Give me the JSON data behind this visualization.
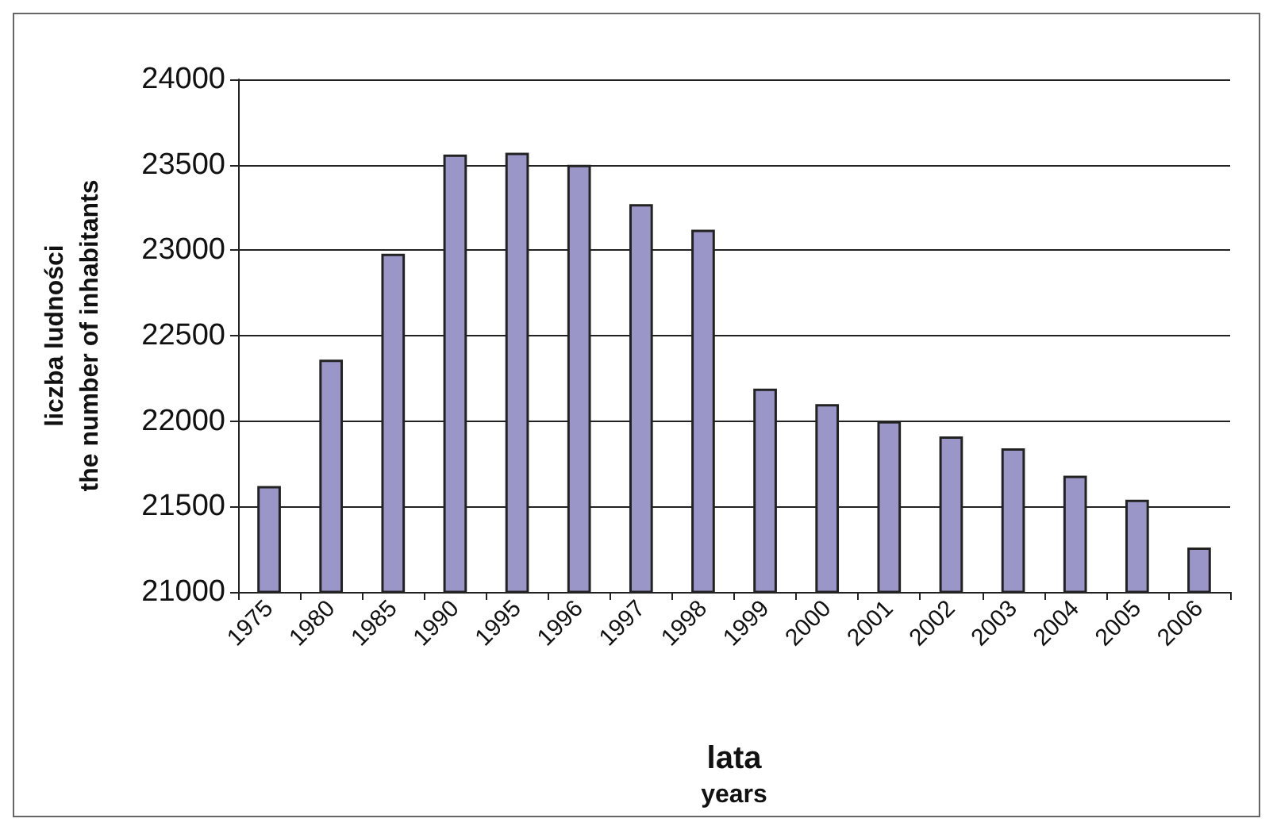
{
  "chart_data": {
    "type": "bar",
    "xlabel": "lata\nyears",
    "ylabel": "liczba ludności\nthe number of inhabitants",
    "categories": [
      "1975",
      "1980",
      "1985",
      "1990",
      "1995",
      "1996",
      "1997",
      "1998",
      "1999",
      "2000",
      "2001",
      "2002",
      "2003",
      "2004",
      "2005",
      "2006"
    ],
    "values": [
      21620,
      22360,
      22980,
      23560,
      23570,
      23500,
      23270,
      23120,
      22190,
      22100,
      22000,
      21910,
      21840,
      21680,
      21540,
      21260
    ],
    "color": "#9b96c8",
    "ylim": [
      21000,
      24000
    ],
    "yticks": [
      21000,
      21500,
      22000,
      22500,
      23000,
      23500,
      24000
    ],
    "grid": "y"
  }
}
